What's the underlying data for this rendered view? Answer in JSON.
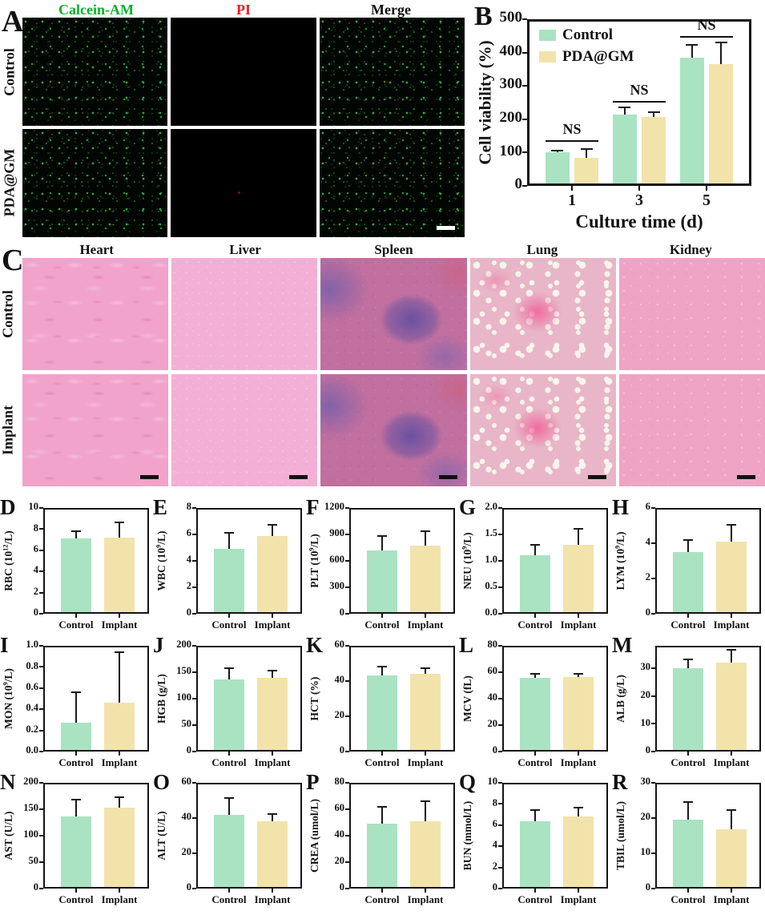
{
  "colors": {
    "bar_green": "#aae3c2",
    "bar_tan": "#f2e3ab",
    "axis": "#141414",
    "calcein_green": "#0db02b",
    "pi_red": "#ee1c25",
    "merge_black": "#111111"
  },
  "panel_a": {
    "letter": "A",
    "column_headers": [
      "Calcein-AM",
      "PI",
      "Merge"
    ],
    "header_colors": [
      "#0db02b",
      "#ee1c25",
      "#111111"
    ],
    "row_labels": [
      "Control",
      "PDA@GM"
    ]
  },
  "panel_c": {
    "letter": "C",
    "column_headers": [
      "Heart",
      "Liver",
      "Spleen",
      "Lung",
      "Kidney"
    ],
    "row_labels": [
      "Control",
      "Implant"
    ]
  },
  "chart_data": [
    {
      "id": "B",
      "type": "bar",
      "ylabel": "Cell viability (%)",
      "xlabel": "Culture time (d)",
      "categories": [
        "1",
        "3",
        "5"
      ],
      "series": [
        {
          "name": "Control",
          "color_key": "bar_green",
          "values": [
            100,
            213,
            385
          ],
          "errors": [
            5,
            23,
            38
          ]
        },
        {
          "name": "PDA@GM",
          "color_key": "bar_tan",
          "values": [
            83,
            207,
            365
          ],
          "errors": [
            27,
            15,
            65
          ]
        }
      ],
      "ylim": [
        0,
        500
      ],
      "yticks": [
        "0",
        "100",
        "200",
        "300",
        "400",
        "500"
      ],
      "annotations": [
        {
          "label": "NS",
          "group": 0,
          "line_y": 138
        },
        {
          "label": "NS",
          "group": 1,
          "line_y": 256
        },
        {
          "label": "NS",
          "group": 2,
          "line_y": 450
        }
      ],
      "legend": {
        "position": "top-left"
      }
    },
    {
      "id": "D",
      "type": "bar",
      "ylabel": "RBC (10^{12}/L)",
      "categories": [
        "Control",
        "Implant"
      ],
      "bar_colors": [
        "bar_green",
        "bar_tan"
      ],
      "values": [
        7.1,
        7.2
      ],
      "errors": [
        0.7,
        1.4
      ],
      "ylim": [
        0,
        10
      ],
      "yticks": [
        "0",
        "2",
        "4",
        "6",
        "8",
        "10"
      ]
    },
    {
      "id": "E",
      "type": "bar",
      "ylabel": "WBC (10^{9}/L)",
      "categories": [
        "Control",
        "Implant"
      ],
      "bar_colors": [
        "bar_green",
        "bar_tan"
      ],
      "values": [
        4.9,
        5.9
      ],
      "errors": [
        1.2,
        0.8
      ],
      "ylim": [
        0,
        8
      ],
      "yticks": [
        "0",
        "2",
        "4",
        "6",
        "8"
      ]
    },
    {
      "id": "F",
      "type": "bar",
      "ylabel": "PLT (10^{9}/L)",
      "categories": [
        "Control",
        "Implant"
      ],
      "bar_colors": [
        "bar_green",
        "bar_tan"
      ],
      "values": [
        720,
        770
      ],
      "errors": [
        160,
        170
      ],
      "ylim": [
        0,
        1200
      ],
      "yticks": [
        "0",
        "300",
        "600",
        "900",
        "1200"
      ]
    },
    {
      "id": "G",
      "type": "bar",
      "ylabel": "NEU (10^{9}/L)",
      "categories": [
        "Control",
        "Implant"
      ],
      "bar_colors": [
        "bar_green",
        "bar_tan"
      ],
      "values": [
        1.1,
        1.3
      ],
      "errors": [
        0.2,
        0.3
      ],
      "ylim": [
        0,
        2
      ],
      "yticks": [
        "0.0",
        "0.5",
        "1.0",
        "1.5",
        "2.0"
      ]
    },
    {
      "id": "H",
      "type": "bar",
      "ylabel": "LYM (10^{9}/L)",
      "categories": [
        "Control",
        "Implant"
      ],
      "bar_colors": [
        "bar_green",
        "bar_tan"
      ],
      "values": [
        3.5,
        4.1
      ],
      "errors": [
        0.7,
        0.95
      ],
      "ylim": [
        0,
        6
      ],
      "yticks": [
        "0",
        "2",
        "4",
        "6"
      ]
    },
    {
      "id": "I",
      "type": "bar",
      "ylabel": "MON (10^{9}/L)",
      "categories": [
        "Control",
        "Implant"
      ],
      "bar_colors": [
        "bar_green",
        "bar_tan"
      ],
      "values": [
        0.27,
        0.46
      ],
      "errors": [
        0.29,
        0.48
      ],
      "ylim": [
        0,
        1
      ],
      "yticks": [
        "0.0",
        "0.2",
        "0.4",
        "0.6",
        "0.8",
        "1.0"
      ]
    },
    {
      "id": "J",
      "type": "bar",
      "ylabel": "HGB (g/L)",
      "categories": [
        "Control",
        "Implant"
      ],
      "bar_colors": [
        "bar_green",
        "bar_tan"
      ],
      "values": [
        136,
        139
      ],
      "errors": [
        22,
        14
      ],
      "ylim": [
        0,
        200
      ],
      "yticks": [
        "0",
        "50",
        "100",
        "150",
        "200"
      ]
    },
    {
      "id": "K",
      "type": "bar",
      "ylabel": "HCT (%)",
      "categories": [
        "Control",
        "Implant"
      ],
      "bar_colors": [
        "bar_green",
        "bar_tan"
      ],
      "values": [
        43,
        44
      ],
      "errors": [
        5,
        3.5
      ],
      "ylim": [
        0,
        60
      ],
      "yticks": [
        "0",
        "20",
        "40",
        "60"
      ]
    },
    {
      "id": "L",
      "type": "bar",
      "ylabel": "MCV (fL)",
      "categories": [
        "Control",
        "Implant"
      ],
      "bar_colors": [
        "bar_green",
        "bar_tan"
      ],
      "values": [
        56,
        56.5
      ],
      "errors": [
        3,
        2.5
      ],
      "ylim": [
        0,
        80
      ],
      "yticks": [
        "0",
        "20",
        "40",
        "60",
        "80"
      ]
    },
    {
      "id": "M",
      "type": "bar",
      "ylabel": "ALB (g/L)",
      "categories": [
        "Control",
        "Implant"
      ],
      "bar_colors": [
        "bar_green",
        "bar_tan"
      ],
      "values": [
        30,
        32
      ],
      "errors": [
        3,
        4.5
      ],
      "ylim": [
        0,
        38
      ],
      "yticks": [
        "0",
        "10",
        "20",
        "30"
      ]
    },
    {
      "id": "N",
      "type": "bar",
      "ylabel": "AST (U/L)",
      "categories": [
        "Control",
        "Implant"
      ],
      "bar_colors": [
        "bar_green",
        "bar_tan"
      ],
      "values": [
        136,
        153
      ],
      "errors": [
        32,
        20
      ],
      "ylim": [
        0,
        200
      ],
      "yticks": [
        "0",
        "50",
        "100",
        "150",
        "200"
      ]
    },
    {
      "id": "O",
      "type": "bar",
      "ylabel": "ALT (U/L)",
      "categories": [
        "Control",
        "Implant"
      ],
      "bar_colors": [
        "bar_green",
        "bar_tan"
      ],
      "values": [
        42,
        38
      ],
      "errors": [
        9.5,
        4.5
      ],
      "ylim": [
        0,
        60
      ],
      "yticks": [
        "0",
        "20",
        "40",
        "60"
      ]
    },
    {
      "id": "P",
      "type": "bar",
      "ylabel": "CREA (umol/L)",
      "categories": [
        "Control",
        "Implant"
      ],
      "bar_colors": [
        "bar_green",
        "bar_tan"
      ],
      "values": [
        49,
        51
      ],
      "errors": [
        13,
        15
      ],
      "ylim": [
        0,
        80
      ],
      "yticks": [
        "0",
        "20",
        "40",
        "60",
        "80"
      ]
    },
    {
      "id": "Q",
      "type": "bar",
      "ylabel": "BUN (mmol/L)",
      "categories": [
        "Control",
        "Implant"
      ],
      "bar_colors": [
        "bar_green",
        "bar_tan"
      ],
      "values": [
        6.4,
        6.8
      ],
      "errors": [
        1.0,
        0.85
      ],
      "ylim": [
        0,
        10
      ],
      "yticks": [
        "0",
        "2",
        "4",
        "6",
        "8",
        "10"
      ]
    },
    {
      "id": "R",
      "type": "bar",
      "ylabel": "TBIL (umol/L)",
      "categories": [
        "Control",
        "Implant"
      ],
      "bar_colors": [
        "bar_green",
        "bar_tan"
      ],
      "values": [
        19.5,
        16.8
      ],
      "errors": [
        5,
        5.5
      ],
      "ylim": [
        0,
        30
      ],
      "yticks": [
        "0",
        "10",
        "20",
        "30"
      ]
    }
  ]
}
